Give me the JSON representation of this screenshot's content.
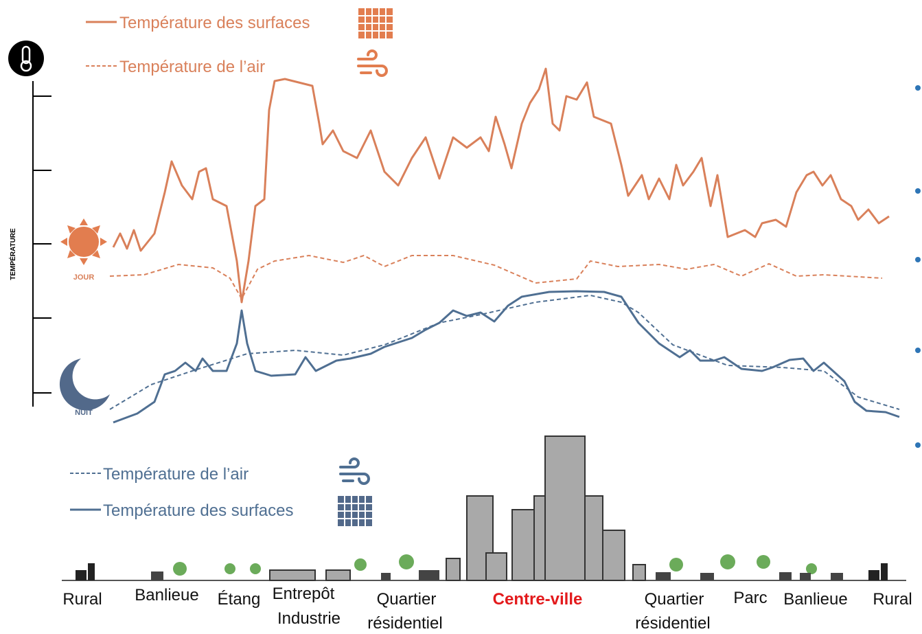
{
  "legend_day": {
    "surface": "Température des surfaces",
    "air": "Température de l’air"
  },
  "legend_night": {
    "air": "Température de l’air",
    "surface": "Température des surfaces"
  },
  "axis_label": "TEMPÉRATURE",
  "day": "JOUR",
  "night": "NUIT",
  "zones": [
    {
      "lines": [
        "Rural"
      ]
    },
    {
      "lines": [
        "Banlieue"
      ]
    },
    {
      "lines": [
        "Étang"
      ]
    },
    {
      "lines": [
        "Entrepôt",
        "Industrie"
      ]
    },
    {
      "lines": [
        "Quartier",
        "résidentiel"
      ]
    },
    {
      "lines": [
        "Centre-ville"
      ]
    },
    {
      "lines": [
        "Quartier",
        "résidentiel"
      ]
    },
    {
      "lines": [
        "Parc"
      ]
    },
    {
      "lines": [
        "Banlieue"
      ]
    },
    {
      "lines": [
        "Rural"
      ]
    }
  ]
}
